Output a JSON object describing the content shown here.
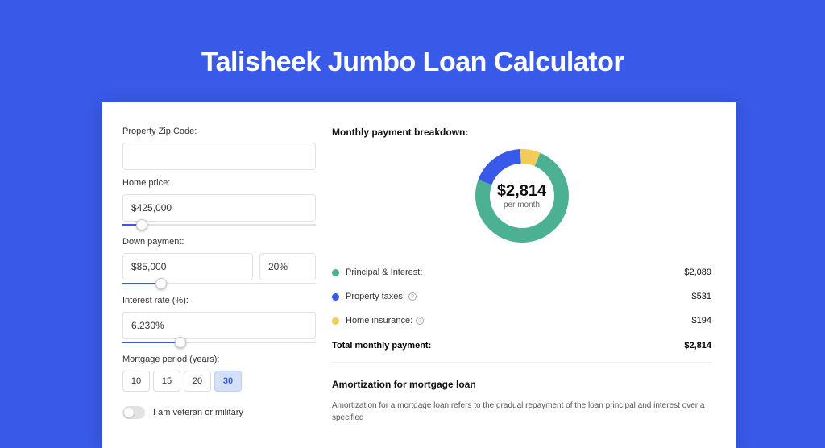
{
  "page_title": "Talisheek Jumbo Loan Calculator",
  "background_color": "#3959e8",
  "form": {
    "zip_label": "Property Zip Code:",
    "zip_value": "",
    "home_price_label": "Home price:",
    "home_price_value": "$425,000",
    "home_price_slider_pct": 10,
    "down_payment_label": "Down payment:",
    "down_payment_value": "$85,000",
    "down_payment_pct": "20%",
    "down_payment_slider_pct": 20,
    "interest_label": "Interest rate (%):",
    "interest_value": "6.230%",
    "interest_slider_pct": 30,
    "period_label": "Mortgage period (years):",
    "periods": [
      "10",
      "15",
      "20",
      "30"
    ],
    "period_active_index": 3,
    "veteran_label": "I am veteran or military",
    "veteran_on": false
  },
  "breakdown": {
    "title": "Monthly payment breakdown:",
    "donut": {
      "type": "donut",
      "size": 120,
      "thickness": 18,
      "slices": [
        {
          "label": "Principal & Interest",
          "value": 2089,
          "color": "#4cb093",
          "deg": 267
        },
        {
          "label": "Property taxes",
          "value": 531,
          "color": "#3959e8",
          "deg": 68
        },
        {
          "label": "Home insurance",
          "value": 194,
          "color": "#f2cc58",
          "deg": 25
        }
      ],
      "center_amount": "$2,814",
      "center_sub": "per month"
    },
    "legend": [
      {
        "label": "Principal & Interest:",
        "value": "$2,089",
        "color": "#4cb093",
        "info": false
      },
      {
        "label": "Property taxes:",
        "value": "$531",
        "color": "#3959e8",
        "info": true
      },
      {
        "label": "Home insurance:",
        "value": "$194",
        "color": "#f2cc58",
        "info": true
      }
    ],
    "total_label": "Total monthly payment:",
    "total_value": "$2,814"
  },
  "amortization": {
    "title": "Amortization for mortgage loan",
    "text": "Amortization for a mortgage loan refers to the gradual repayment of the loan principal and interest over a specified"
  }
}
